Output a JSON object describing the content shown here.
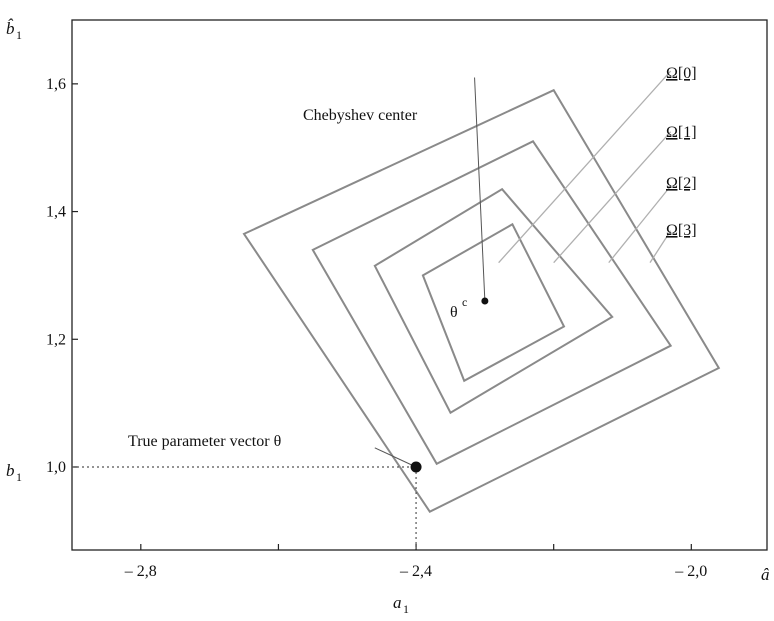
{
  "chart_data": {
    "type": "line",
    "xlim": [
      -2.9,
      -1.89
    ],
    "ylim": [
      0.87,
      1.7
    ],
    "x_ticks": [
      -2.8,
      -2.6,
      -2.4,
      -2.2,
      -2.0
    ],
    "x_tick_labels": [
      "– 2,8",
      "",
      "– 2,4",
      "",
      "– 2,0"
    ],
    "y_ticks": [
      1.0,
      1.2,
      1.4,
      1.6
    ],
    "y_tick_labels": [
      "1,0",
      "1,2",
      "1,4",
      "1,6"
    ],
    "x_axis_label": "â",
    "y_axis_label": "b̂",
    "y_axis_label_sub": "1",
    "grid": false,
    "series": [
      {
        "name": "Ω[0]",
        "points": [
          [
            -2.65,
            1.365
          ],
          [
            -2.2,
            1.59
          ],
          [
            -1.96,
            1.155
          ],
          [
            -2.38,
            0.93
          ]
        ]
      },
      {
        "name": "Ω[1]",
        "points": [
          [
            -2.55,
            1.34
          ],
          [
            -2.23,
            1.51
          ],
          [
            -2.03,
            1.19
          ],
          [
            -2.37,
            1.005
          ]
        ]
      },
      {
        "name": "Ω[2]",
        "points": [
          [
            -2.46,
            1.315
          ],
          [
            -2.275,
            1.435
          ],
          [
            -2.115,
            1.235
          ],
          [
            -2.35,
            1.085
          ]
        ]
      },
      {
        "name": "Ω[3]",
        "points": [
          [
            -2.39,
            1.3
          ],
          [
            -2.26,
            1.38
          ],
          [
            -2.185,
            1.22
          ],
          [
            -2.33,
            1.135
          ]
        ]
      }
    ],
    "labelled_points": [
      {
        "label": "Chebyshev center",
        "x": -2.3,
        "y": 1.26
      },
      {
        "label": "True parameter vector θ",
        "x": -2.4,
        "y": 1.0
      }
    ],
    "annotations": {
      "omega_labels": [
        "Ω[0]",
        "Ω[1]",
        "Ω[2]",
        "Ω[3]"
      ],
      "chebyshev_label": "Chebyshev center",
      "theta_c_base": "θ",
      "theta_c_sup": "c",
      "true_param_label": "True parameter vector θ",
      "b1_label": "b",
      "b1_sub": "1",
      "a1_label": "a",
      "a1_sub": "1"
    },
    "colors": {
      "polygon": "#8a8a8a",
      "axis": "#222222",
      "leader": "#b0b0b0",
      "dotted": "#555555"
    }
  }
}
